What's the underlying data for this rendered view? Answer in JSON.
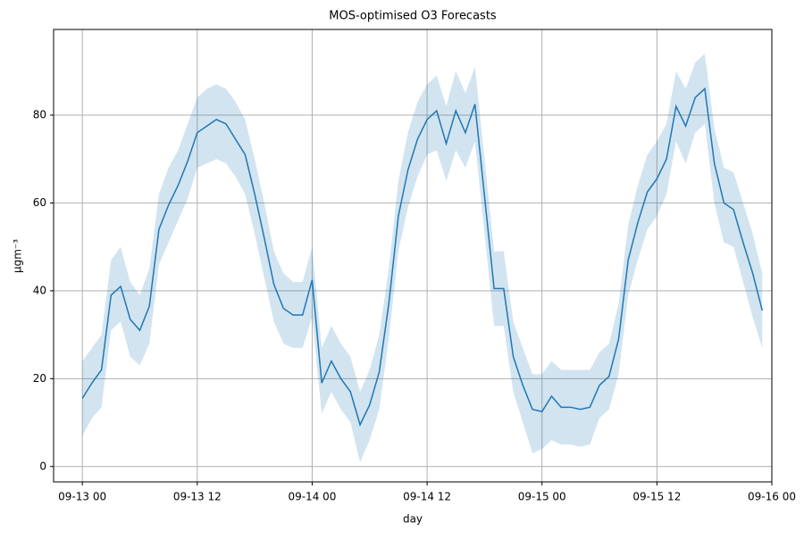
{
  "chart_data": {
    "type": "line",
    "title": "MOS-optimised O3 Forecasts",
    "xlabel": "day",
    "ylabel": "µgm⁻³",
    "x": [
      "09-13 00",
      "09-13 01",
      "09-13 02",
      "09-13 03",
      "09-13 04",
      "09-13 05",
      "09-13 06",
      "09-13 07",
      "09-13 08",
      "09-13 09",
      "09-13 10",
      "09-13 11",
      "09-13 12",
      "09-13 13",
      "09-13 14",
      "09-13 15",
      "09-13 16",
      "09-13 17",
      "09-13 18",
      "09-13 19",
      "09-13 20",
      "09-13 21",
      "09-13 22",
      "09-13 23",
      "09-14 00",
      "09-14 01",
      "09-14 02",
      "09-14 03",
      "09-14 04",
      "09-14 05",
      "09-14 06",
      "09-14 07",
      "09-14 08",
      "09-14 09",
      "09-14 10",
      "09-14 11",
      "09-14 12",
      "09-14 13",
      "09-14 14",
      "09-14 15",
      "09-14 16",
      "09-14 17",
      "09-14 18",
      "09-14 19",
      "09-14 20",
      "09-14 21",
      "09-14 22",
      "09-14 23",
      "09-15 00",
      "09-15 01",
      "09-15 02",
      "09-15 03",
      "09-15 04",
      "09-15 05",
      "09-15 06",
      "09-15 07",
      "09-15 08",
      "09-15 09",
      "09-15 10",
      "09-15 11",
      "09-15 12",
      "09-15 13",
      "09-15 14",
      "09-15 15",
      "09-15 16",
      "09-15 17",
      "09-15 18",
      "09-15 19",
      "09-15 20",
      "09-15 21",
      "09-15 22",
      "09-15 23"
    ],
    "series": [
      {
        "color": "#1f77b4",
        "band_color": "#1f77b4",
        "values": [
          15.5,
          19,
          22,
          39,
          41,
          33.5,
          31,
          36.5,
          54,
          59.5,
          64,
          69.5,
          76,
          77.5,
          79,
          78,
          74.5,
          71,
          62,
          52,
          41.5,
          36,
          34.5,
          34.5,
          42.5,
          19,
          24,
          20,
          17,
          9.5,
          14,
          21.5,
          37,
          57,
          67.5,
          74.5,
          79,
          81,
          73.5,
          81,
          76,
          82.5,
          61.5,
          40.5,
          40.5,
          25,
          18.5,
          13,
          12.5,
          16,
          13.5,
          13.5,
          13,
          13.5,
          18.5,
          20.5,
          29,
          47,
          55.5,
          62.5,
          65.5,
          70,
          82,
          77.5,
          84,
          86,
          69,
          60,
          58.5,
          51,
          44,
          35.5
        ],
        "lower": [
          7,
          11,
          13.5,
          31,
          33,
          25,
          23,
          28,
          46,
          51,
          56,
          61,
          68,
          69,
          70,
          69,
          66,
          62,
          53,
          43,
          33,
          28,
          27,
          27,
          34,
          12,
          17,
          13,
          10,
          1,
          6,
          13,
          29,
          49,
          59,
          66,
          71,
          72,
          65,
          72,
          68,
          74,
          53,
          32,
          32,
          17,
          10,
          3,
          4,
          6,
          5,
          5,
          4.5,
          5,
          11,
          13,
          21,
          39,
          47,
          54,
          57,
          62,
          74,
          69,
          76,
          78,
          60,
          51,
          50,
          42,
          34,
          27
        ],
        "upper": [
          24,
          27,
          30,
          47,
          50,
          42,
          39,
          45,
          62,
          68,
          72,
          78,
          84,
          86,
          87,
          86,
          83,
          79,
          70,
          60,
          49,
          44,
          42,
          42,
          50,
          27,
          32,
          28,
          25,
          17,
          22,
          30,
          45,
          65,
          76,
          83,
          87,
          89,
          82,
          90,
          85,
          91,
          70,
          49,
          49,
          33,
          27,
          21,
          21,
          24,
          22,
          22,
          22,
          22,
          26,
          28,
          37,
          55,
          64,
          71,
          74,
          78,
          90,
          86,
          92,
          94,
          77,
          68,
          67,
          60,
          53,
          44
        ]
      }
    ],
    "xlim": [
      "09-12 21",
      "09-16 00"
    ],
    "xticks": [
      "09-13 00",
      "09-13 12",
      "09-14 00",
      "09-14 12",
      "09-15 00",
      "09-15 12",
      "09-16 00"
    ],
    "ylim": [
      -3.5,
      99.5
    ],
    "yticks": [
      0,
      20,
      40,
      60,
      80
    ],
    "grid": true
  }
}
